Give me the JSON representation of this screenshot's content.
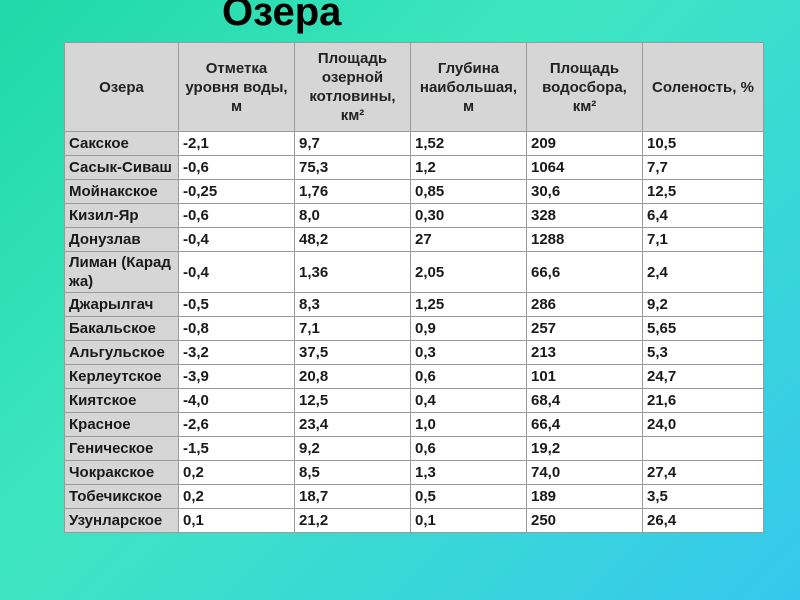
{
  "title": "Озера",
  "headers": [
    "Озера",
    "Отметка уровня воды, м",
    "Площадь озерной котловины, км²",
    "Глубина наибольшая, м",
    "Площадь водосбора, км²",
    "Соленость, %"
  ],
  "rows": [
    [
      "Сакское",
      "-2,1",
      "9,7",
      "1,52",
      "209",
      "10,5"
    ],
    [
      "Сасык-Сиваш",
      "-0,6",
      "75,3",
      "1,2",
      "1064",
      "7,7"
    ],
    [
      "Мойнакское",
      "-0,25",
      "1,76",
      "0,85",
      "30,6",
      "12,5"
    ],
    [
      "Кизил-Яр",
      "-0,6",
      "8,0",
      "0,30",
      "328",
      "6,4"
    ],
    [
      "Донузлав",
      "-0,4",
      "48,2",
      "27",
      "1288",
      "7,1"
    ],
    [
      "Лиман (Караджа)",
      "-0,4",
      "1,36",
      "2,05",
      "66,6",
      "2,4"
    ],
    [
      "Джарылгач",
      "-0,5",
      "8,3",
      "1,25",
      "286",
      "9,2"
    ],
    [
      "Бакальское",
      "-0,8",
      "7,1",
      "0,9",
      "257",
      "5,65"
    ],
    [
      "Альгульское",
      "-3,2",
      "37,5",
      "0,3",
      "213",
      "5,3"
    ],
    [
      "Керлеутское",
      "-3,9",
      "20,8",
      "0,6",
      "101",
      "24,7"
    ],
    [
      "Киятское",
      "-4,0",
      "12,5",
      "0,4",
      "68,4",
      "21,6"
    ],
    [
      "Красное",
      "-2,6",
      "23,4",
      "1,0",
      "66,4",
      "24,0"
    ],
    [
      "Геническое",
      "-1,5",
      "9,2",
      "0,6",
      "19,2",
      ""
    ],
    [
      "Чокракское",
      "0,2",
      "8,5",
      "1,3",
      "74,0",
      "27,4"
    ],
    [
      "Тобечикское",
      "0,2",
      "18,7",
      "0,5",
      "189",
      "3,5"
    ],
    [
      "Узунларское",
      "0,1",
      "21,2",
      "0,1",
      "250",
      "26,4"
    ]
  ]
}
